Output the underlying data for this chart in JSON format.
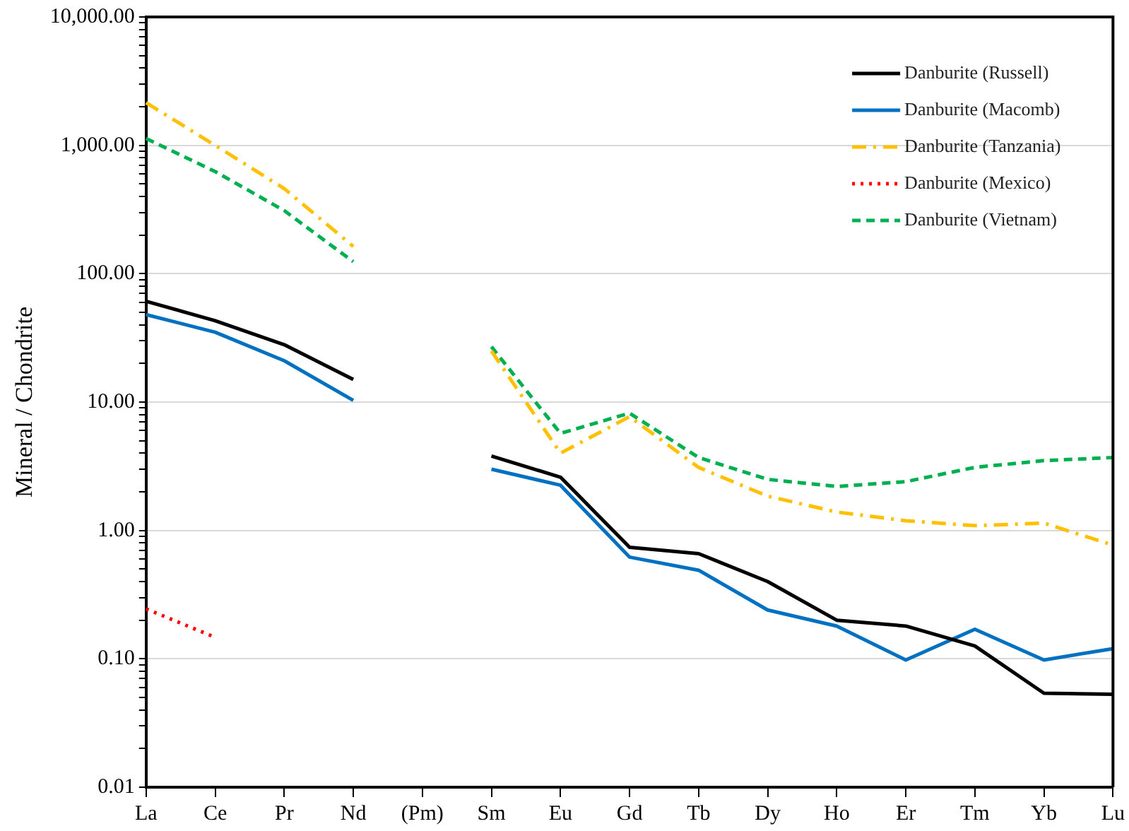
{
  "chart_data": {
    "type": "line",
    "ylabel": "Mineral / Chondrite",
    "log": "y",
    "grid": "y",
    "legend": "top right",
    "marker": "none",
    "categories": [
      "La",
      "Ce",
      "Pr",
      "Nd",
      "(Pm)",
      "Sm",
      "Eu",
      "Gd",
      "Tb",
      "Dy",
      "Ho",
      "Er",
      "Tm",
      "Yb",
      "Lu"
    ],
    "ylim": [
      0.01,
      10000
    ],
    "yticks": [
      {
        "value": 0.01,
        "label": "0.01"
      },
      {
        "value": 0.02,
        "label": null
      },
      {
        "value": 0.03,
        "label": null
      },
      {
        "value": 0.04,
        "label": null
      },
      {
        "value": 0.05,
        "label": null
      },
      {
        "value": 0.06,
        "label": null
      },
      {
        "value": 0.07,
        "label": null
      },
      {
        "value": 0.08,
        "label": null
      },
      {
        "value": 0.09,
        "label": null
      },
      {
        "value": 0.1,
        "label": "0.10"
      },
      {
        "value": 0.2,
        "label": null
      },
      {
        "value": 0.3,
        "label": null
      },
      {
        "value": 0.4,
        "label": null
      },
      {
        "value": 0.5,
        "label": null
      },
      {
        "value": 0.6,
        "label": null
      },
      {
        "value": 0.7,
        "label": null
      },
      {
        "value": 0.8,
        "label": null
      },
      {
        "value": 0.9,
        "label": null
      },
      {
        "value": 1,
        "label": "1.00"
      },
      {
        "value": 2,
        "label": null
      },
      {
        "value": 3,
        "label": null
      },
      {
        "value": 4,
        "label": null
      },
      {
        "value": 5,
        "label": null
      },
      {
        "value": 6,
        "label": null
      },
      {
        "value": 7,
        "label": null
      },
      {
        "value": 8,
        "label": null
      },
      {
        "value": 9,
        "label": null
      },
      {
        "value": 10,
        "label": "10.00"
      },
      {
        "value": 20,
        "label": null
      },
      {
        "value": 30,
        "label": null
      },
      {
        "value": 40,
        "label": null
      },
      {
        "value": 50,
        "label": null
      },
      {
        "value": 60,
        "label": null
      },
      {
        "value": 70,
        "label": null
      },
      {
        "value": 80,
        "label": null
      },
      {
        "value": 90,
        "label": null
      },
      {
        "value": 100,
        "label": "100.00"
      },
      {
        "value": 200,
        "label": null
      },
      {
        "value": 300,
        "label": null
      },
      {
        "value": 400,
        "label": null
      },
      {
        "value": 500,
        "label": null
      },
      {
        "value": 600,
        "label": null
      },
      {
        "value": 700,
        "label": null
      },
      {
        "value": 800,
        "label": null
      },
      {
        "value": 900,
        "label": null
      },
      {
        "value": 1000,
        "label": "1,000.00"
      },
      {
        "value": 2000,
        "label": null
      },
      {
        "value": 3000,
        "label": null
      },
      {
        "value": 4000,
        "label": null
      },
      {
        "value": 5000,
        "label": null
      },
      {
        "value": 6000,
        "label": null
      },
      {
        "value": 7000,
        "label": null
      },
      {
        "value": 8000,
        "label": null
      },
      {
        "value": 9000,
        "label": null
      },
      {
        "value": 10000,
        "label": "10,000.00"
      }
    ],
    "series": [
      {
        "name": "Danburite (Russell)",
        "color": "#000000",
        "line_style": "solid",
        "values": [
          61,
          43,
          28,
          15,
          null,
          3.8,
          2.6,
          0.74,
          0.66,
          0.4,
          0.2,
          0.18,
          0.126,
          0.054,
          0.053
        ]
      },
      {
        "name": "Danburite (Macomb)",
        "color": "#0070c0",
        "line_style": "solid",
        "values": [
          48,
          35,
          21,
          10.3,
          null,
          3.0,
          2.25,
          0.62,
          0.49,
          0.24,
          0.18,
          0.098,
          0.17,
          0.098,
          0.12
        ]
      },
      {
        "name": "Danburite (Tanzania)",
        "color": "#ffc000",
        "line_style": "dashdot",
        "values": [
          2150,
          1000,
          460,
          163,
          null,
          25,
          4.0,
          7.7,
          3.1,
          1.85,
          1.39,
          1.19,
          1.09,
          1.14,
          0.77
        ]
      },
      {
        "name": "Danburite (Mexico)",
        "color": "#ff0000",
        "line_style": "dotted",
        "values": [
          0.245,
          0.147,
          null,
          null,
          null,
          null,
          null,
          null,
          null,
          null,
          null,
          null,
          null,
          null,
          null
        ]
      },
      {
        "name": "Danburite (Vietnam)",
        "color": "#00b050",
        "line_style": "dashed",
        "values": [
          1130,
          625,
          310,
          124,
          null,
          27,
          5.7,
          8.2,
          3.7,
          2.5,
          2.2,
          2.4,
          3.1,
          3.5,
          3.7
        ]
      }
    ]
  }
}
